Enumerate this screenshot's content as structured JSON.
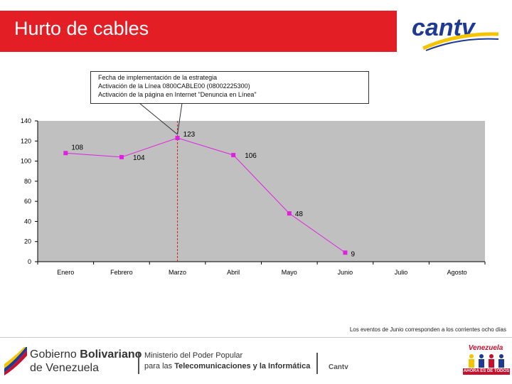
{
  "header": {
    "title": "Hurto de cables",
    "logo_text": "cantv"
  },
  "callout": {
    "lines": [
      "Fecha de implementación de la estrategia",
      "Activación de la Línea 0800CABLE00 (08002225300)",
      "Activación de la página en Internet \"Denuncia en Línea\""
    ]
  },
  "chart_data": {
    "type": "line",
    "categories": [
      "Enero",
      "Febrero",
      "Marzo",
      "Abril",
      "Mayo",
      "Junio",
      "Julio",
      "Agosto"
    ],
    "values": [
      108,
      104,
      123,
      106,
      48,
      9,
      null,
      null
    ],
    "ylim": [
      0,
      140
    ],
    "yticks": [
      0,
      20,
      40,
      60,
      80,
      100,
      120,
      140
    ],
    "marker_line_category": "Marzo",
    "grid": false,
    "colors": {
      "series": "#e020e0",
      "plot_bg": "#c0c0c0",
      "marker_line": "#d02020"
    }
  },
  "note": "Los eventos de Junio corresponden a los corrientes ocho días",
  "footer": {
    "gobierno_line1_a": "Gobierno ",
    "gobierno_line1_b": "Bolivariano",
    "gobierno_line2": "de Venezuela",
    "ministerio_line1": "Ministerio del Poder Popular",
    "ministerio_line2_a": "para las ",
    "ministerio_line2_b": "Telecomunicaciones y la Informática",
    "cantv": "Cantv",
    "venezuela_word": "Venezuela",
    "venezuela_slogan": "AHORA ES DE TODOS"
  },
  "colors": {
    "brand_red": "#e31e24",
    "cantv_blue": "#1f3a93",
    "cantv_yellow": "#f5c400"
  }
}
